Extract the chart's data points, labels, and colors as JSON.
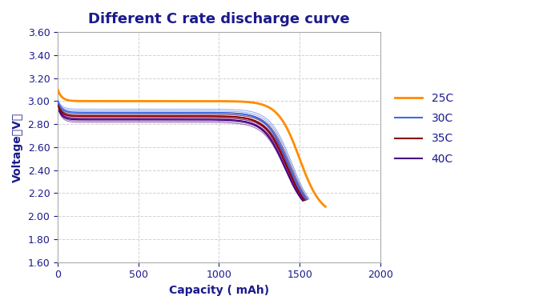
{
  "title": "Different C rate discharge curve",
  "xlabel": "Capacity ( mAh)",
  "ylabel": "Voltage（V）",
  "xlim": [
    0,
    2000
  ],
  "ylim": [
    1.6,
    3.6
  ],
  "xticks": [
    0,
    500,
    1000,
    1500,
    2000
  ],
  "yticks": [
    1.6,
    1.8,
    2.0,
    2.2,
    2.4,
    2.6,
    2.8,
    3.0,
    3.2,
    3.4,
    3.6
  ],
  "curves": {
    "25C": {
      "color": "#FF8C00",
      "linewidth": 2.0
    },
    "30C": {
      "color": "#4169E1",
      "linewidth": 1.5
    },
    "35C": {
      "color": "#8B0000",
      "linewidth": 1.5
    },
    "40C": {
      "color": "#4B0082",
      "linewidth": 1.5
    }
  },
  "background_color": "#FFFFFF",
  "grid_color": "#CCCCCC",
  "title_fontsize": 13,
  "label_fontsize": 10,
  "tick_fontsize": 9
}
